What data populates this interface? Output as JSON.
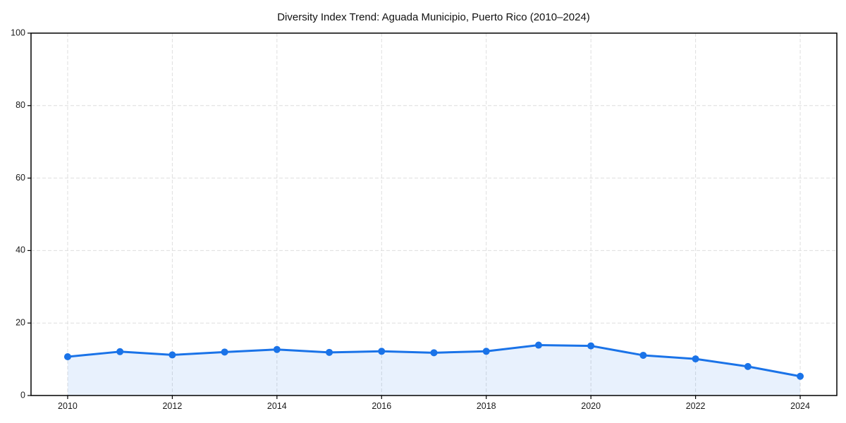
{
  "chart_data": {
    "type": "area",
    "title": "Diversity Index Trend: Aguada Municipio, Puerto Rico (2010–2024)",
    "series_name": "Diversity Index",
    "x": [
      2010,
      2011,
      2012,
      2013,
      2014,
      2015,
      2016,
      2017,
      2018,
      2019,
      2020,
      2021,
      2022,
      2023,
      2024
    ],
    "values": [
      10.7,
      12.1,
      11.2,
      12.0,
      12.7,
      11.9,
      12.2,
      11.8,
      12.2,
      13.9,
      13.7,
      11.1,
      10.1,
      8.0,
      5.3
    ],
    "xlabel": "",
    "ylabel": "",
    "xlim": [
      2009.3,
      2024.7
    ],
    "ylim": [
      0,
      100
    ],
    "xticks": [
      2010,
      2012,
      2014,
      2016,
      2018,
      2020,
      2022,
      2024
    ],
    "yticks": [
      0,
      20,
      40,
      60,
      80,
      100
    ],
    "grid": true,
    "grid_style": "dashed",
    "legend_position": "none",
    "colors": {
      "line": "#1a73e8",
      "marker": "#1a73e8",
      "fill": "rgba(26,115,232,0.10)",
      "grid": "#dedede",
      "axis": "#000000",
      "tick_text": "#1a1a1a",
      "title_text": "#111111",
      "background": "#ffffff"
    }
  }
}
